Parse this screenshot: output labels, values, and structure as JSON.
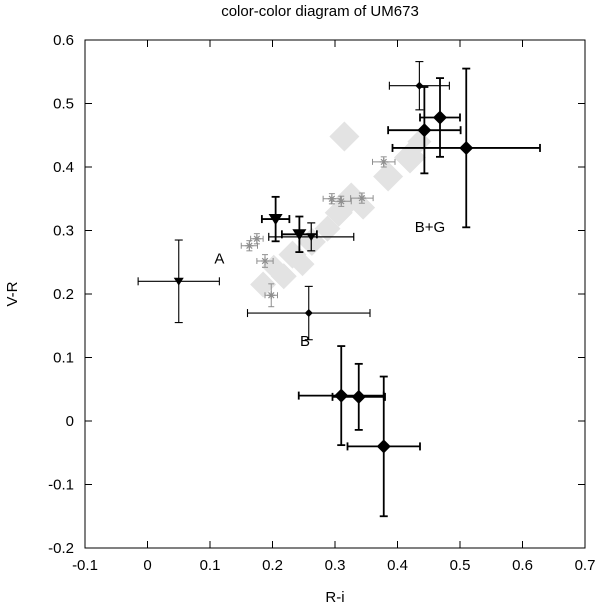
{
  "chart_data": {
    "type": "scatter",
    "title": "color-color diagram of UM673",
    "xlabel": "R-i",
    "ylabel": "V-R",
    "xlim": [
      -0.1,
      0.7
    ],
    "ylim": [
      -0.2,
      0.6
    ],
    "grid": false,
    "legend": "none",
    "background": "#ffffff",
    "border_color": "#000000",
    "xticks": [
      -0.1,
      0,
      0.1,
      0.2,
      0.3,
      0.4,
      0.5,
      0.6,
      0.7
    ],
    "xtick_labels": [
      "-0.1",
      "0",
      "0.1",
      "0.2",
      "0.3",
      "0.4",
      "0.5",
      "0.6",
      "0.7"
    ],
    "yticks": [
      -0.2,
      -0.1,
      0,
      0.1,
      0.2,
      0.3,
      0.4,
      0.5,
      0.6
    ],
    "ytick_labels": [
      "-0.2",
      "-0.1",
      "0",
      "0.1",
      "0.2",
      "0.3",
      "0.4",
      "0.5",
      "0.6"
    ],
    "annotations": [
      {
        "text": "A",
        "x": 0.115,
        "y": 0.248
      },
      {
        "text": "B",
        "x": 0.252,
        "y": 0.118
      },
      {
        "text": "B+G",
        "x": 0.452,
        "y": 0.298
      }
    ],
    "series": [
      {
        "id": "gray-band-diamonds",
        "marker": "diamond",
        "color": "#e3e3e3",
        "size": 14,
        "points": [
          {
            "x": 0.185,
            "y": 0.215,
            "s": 13
          },
          {
            "x": 0.202,
            "y": 0.243,
            "s": 12
          },
          {
            "x": 0.218,
            "y": 0.228,
            "s": 13
          },
          {
            "x": 0.232,
            "y": 0.262,
            "s": 14
          },
          {
            "x": 0.248,
            "y": 0.247,
            "s": 12
          },
          {
            "x": 0.263,
            "y": 0.282,
            "s": 14
          },
          {
            "x": 0.288,
            "y": 0.303,
            "s": 13
          },
          {
            "x": 0.306,
            "y": 0.328,
            "s": 14
          },
          {
            "x": 0.326,
            "y": 0.352,
            "s": 15
          },
          {
            "x": 0.345,
            "y": 0.336,
            "s": 12
          },
          {
            "x": 0.315,
            "y": 0.448,
            "s": 15
          },
          {
            "x": 0.385,
            "y": 0.385,
            "s": 15
          },
          {
            "x": 0.42,
            "y": 0.415,
            "s": 16
          },
          {
            "x": 0.435,
            "y": 0.44,
            "s": 12
          }
        ]
      },
      {
        "id": "gray-stars",
        "marker": "star",
        "color": "#8f8f8f",
        "size": 4,
        "lw": 1,
        "cap": 3,
        "points": [
          {
            "x": 0.163,
            "y": 0.276,
            "xerr": 0.013,
            "yerr": 0.008
          },
          {
            "x": 0.175,
            "y": 0.287,
            "xerr": 0.01,
            "yerr": 0.008
          },
          {
            "x": 0.188,
            "y": 0.252,
            "xerr": 0.013,
            "yerr": 0.01
          },
          {
            "x": 0.198,
            "y": 0.198,
            "xerr": 0.01,
            "yerr": 0.018
          },
          {
            "x": 0.295,
            "y": 0.35,
            "xerr": 0.014,
            "yerr": 0.008
          },
          {
            "x": 0.31,
            "y": 0.346,
            "xerr": 0.016,
            "yerr": 0.008
          },
          {
            "x": 0.343,
            "y": 0.351,
            "xerr": 0.018,
            "yerr": 0.008
          },
          {
            "x": 0.378,
            "y": 0.408,
            "xerr": 0.018,
            "yerr": 0.008
          }
        ]
      },
      {
        "id": "black-triangles",
        "marker": "triangle-down",
        "color": "#000000",
        "size": 7,
        "lw": 1.5,
        "cap": 4,
        "points": [
          {
            "x": 0.05,
            "y": 0.22,
            "xerr": 0.065,
            "yerr": 0.065,
            "s": 5,
            "lw": 1.1
          },
          {
            "x": 0.205,
            "y": 0.318,
            "xerr": 0.022,
            "yerr": 0.035,
            "s": 7,
            "lw": 1.8
          },
          {
            "x": 0.243,
            "y": 0.294,
            "xerr": 0.028,
            "yerr": 0.028,
            "s": 7,
            "lw": 1.8
          },
          {
            "x": 0.262,
            "y": 0.29,
            "xerr": 0.068,
            "yerr": 0.022,
            "s": 5,
            "lw": 1.2
          }
        ]
      },
      {
        "id": "black-diamonds",
        "marker": "diamond",
        "color": "#000000",
        "size": 7,
        "lw": 1.8,
        "cap": 4,
        "points": [
          {
            "x": 0.435,
            "y": 0.528,
            "xerr": 0.048,
            "yerr": 0.038,
            "s": 4,
            "lw": 1.1
          },
          {
            "x": 0.468,
            "y": 0.478,
            "xerr": 0.032,
            "yerr": 0.062,
            "s": 7
          },
          {
            "x": 0.443,
            "y": 0.458,
            "xerr": 0.058,
            "yerr": 0.068,
            "s": 7
          },
          {
            "x": 0.51,
            "y": 0.43,
            "xerr": 0.118,
            "yerr": 0.125,
            "s": 7
          },
          {
            "x": 0.258,
            "y": 0.17,
            "xerr": 0.098,
            "yerr": 0.042,
            "s": 4,
            "lw": 1.1
          },
          {
            "x": 0.31,
            "y": 0.04,
            "xerr": 0.068,
            "yerr": 0.078,
            "s": 7
          },
          {
            "x": 0.338,
            "y": 0.038,
            "xerr": 0.042,
            "yerr": 0.052,
            "s": 7
          },
          {
            "x": 0.378,
            "y": -0.04,
            "xerr": 0.058,
            "yerr": 0.11,
            "s": 7
          }
        ]
      }
    ]
  }
}
